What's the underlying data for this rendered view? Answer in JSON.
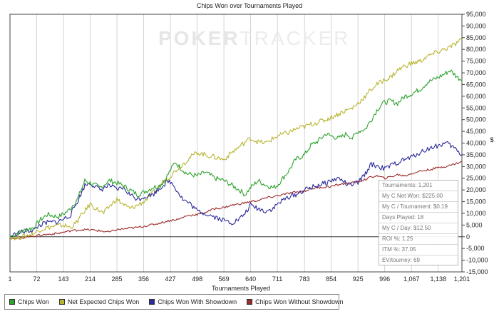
{
  "chart_data": {
    "type": "line",
    "title": "Chips Won over Tournaments Played",
    "xlabel": "Tournaments Played",
    "ylabel": "$",
    "xlim": [
      1,
      1201
    ],
    "ylim": [
      -15000,
      95000
    ],
    "x_ticks": [
      "1",
      "72",
      "143",
      "214",
      "285",
      "356",
      "427",
      "498",
      "569",
      "640",
      "711",
      "783",
      "854",
      "925",
      "996",
      "1,067",
      "1,138",
      "1,201"
    ],
    "y_ticks": [
      {
        "value": 95000,
        "label": "95,000"
      },
      {
        "value": 90000,
        "label": "90,000"
      },
      {
        "value": 85000,
        "label": "85,000"
      },
      {
        "value": 80000,
        "label": "80,000"
      },
      {
        "value": 75000,
        "label": "75,000"
      },
      {
        "value": 70000,
        "label": "70,000"
      },
      {
        "value": 65000,
        "label": "65,000"
      },
      {
        "value": 60000,
        "label": "60,000"
      },
      {
        "value": 55000,
        "label": "55,000"
      },
      {
        "value": 50000,
        "label": "50,000"
      },
      {
        "value": 45000,
        "label": "45,000"
      },
      {
        "value": 40000,
        "label": "40,000"
      },
      {
        "value": 35000,
        "label": "35,000"
      },
      {
        "value": 30000,
        "label": "30,000"
      },
      {
        "value": 25000,
        "label": "25,000"
      },
      {
        "value": 20000,
        "label": "20,000"
      },
      {
        "value": 15000,
        "label": "15,000"
      },
      {
        "value": 10000,
        "label": "10,000"
      },
      {
        "value": 5000,
        "label": "5,000"
      },
      {
        "value": 0,
        "label": "0"
      },
      {
        "value": -5000,
        "label": "-5,000"
      },
      {
        "value": -10000,
        "label": "-10,000"
      },
      {
        "value": -15000,
        "label": "-15,000"
      }
    ],
    "grid": "vertical",
    "legend_position": "bottom-left",
    "series": [
      {
        "name": "Chips Won",
        "color": "#2ea32e",
        "points": [
          [
            1,
            0
          ],
          [
            20,
            1500
          ],
          [
            45,
            3000
          ],
          [
            65,
            4000
          ],
          [
            80,
            7000
          ],
          [
            100,
            9500
          ],
          [
            130,
            8500
          ],
          [
            155,
            11000
          ],
          [
            180,
            16000
          ],
          [
            200,
            24000
          ],
          [
            214,
            23000
          ],
          [
            240,
            21000
          ],
          [
            265,
            24000
          ],
          [
            285,
            23000
          ],
          [
            300,
            22000
          ],
          [
            320,
            20000
          ],
          [
            340,
            18000
          ],
          [
            356,
            19000
          ],
          [
            380,
            21000
          ],
          [
            400,
            22000
          ],
          [
            415,
            25000
          ],
          [
            440,
            32000
          ],
          [
            450,
            30000
          ],
          [
            470,
            27000
          ],
          [
            498,
            26000
          ],
          [
            520,
            27500
          ],
          [
            545,
            25000
          ],
          [
            569,
            24000
          ],
          [
            590,
            22000
          ],
          [
            610,
            20000
          ],
          [
            625,
            18000
          ],
          [
            640,
            21000
          ],
          [
            660,
            24000
          ],
          [
            680,
            22000
          ],
          [
            700,
            21000
          ],
          [
            711,
            22000
          ],
          [
            740,
            28000
          ],
          [
            760,
            33000
          ],
          [
            783,
            35000
          ],
          [
            800,
            39000
          ],
          [
            820,
            41000
          ],
          [
            840,
            44000
          ],
          [
            854,
            43000
          ],
          [
            875,
            42000
          ],
          [
            895,
            44000
          ],
          [
            910,
            42000
          ],
          [
            925,
            45000
          ],
          [
            945,
            46000
          ],
          [
            960,
            50000
          ],
          [
            975,
            54000
          ],
          [
            990,
            57000
          ],
          [
            1010,
            58000
          ],
          [
            1030,
            57000
          ],
          [
            1050,
            60000
          ],
          [
            1067,
            61000
          ],
          [
            1090,
            63000
          ],
          [
            1110,
            66000
          ],
          [
            1138,
            68000
          ],
          [
            1170,
            71000
          ],
          [
            1190,
            68000
          ],
          [
            1201,
            67000
          ]
        ]
      },
      {
        "name": "Net Expected Chips Won",
        "color": "#b8b530",
        "points": [
          [
            1,
            0
          ],
          [
            20,
            -500
          ],
          [
            45,
            500
          ],
          [
            65,
            1500
          ],
          [
            80,
            3000
          ],
          [
            100,
            4000
          ],
          [
            120,
            4500
          ],
          [
            143,
            5000
          ],
          [
            160,
            4000
          ],
          [
            175,
            5500
          ],
          [
            190,
            9000
          ],
          [
            214,
            14000
          ],
          [
            230,
            12000
          ],
          [
            250,
            10000
          ],
          [
            265,
            13000
          ],
          [
            285,
            16000
          ],
          [
            300,
            14000
          ],
          [
            320,
            12000
          ],
          [
            340,
            13500
          ],
          [
            356,
            15000
          ],
          [
            370,
            17000
          ],
          [
            390,
            20000
          ],
          [
            410,
            24000
          ],
          [
            427,
            26000
          ],
          [
            445,
            29000
          ],
          [
            460,
            31000
          ],
          [
            480,
            34000
          ],
          [
            498,
            36000
          ],
          [
            520,
            35000
          ],
          [
            545,
            34000
          ],
          [
            569,
            33000
          ],
          [
            590,
            36000
          ],
          [
            610,
            38500
          ],
          [
            630,
            41000
          ],
          [
            640,
            42000
          ],
          [
            660,
            40500
          ],
          [
            680,
            40000
          ],
          [
            700,
            42000
          ],
          [
            711,
            43000
          ],
          [
            740,
            44500
          ],
          [
            760,
            46000
          ],
          [
            783,
            47000
          ],
          [
            800,
            48000
          ],
          [
            820,
            49000
          ],
          [
            840,
            50000
          ],
          [
            854,
            51000
          ],
          [
            880,
            53000
          ],
          [
            910,
            55000
          ],
          [
            925,
            57000
          ],
          [
            945,
            60000
          ],
          [
            960,
            63000
          ],
          [
            975,
            65000
          ],
          [
            996,
            67000
          ],
          [
            1010,
            68000
          ],
          [
            1030,
            71000
          ],
          [
            1050,
            73000
          ],
          [
            1067,
            74000
          ],
          [
            1090,
            75000
          ],
          [
            1110,
            77000
          ],
          [
            1138,
            79000
          ],
          [
            1170,
            81000
          ],
          [
            1190,
            83000
          ],
          [
            1201,
            84000
          ]
        ]
      },
      {
        "name": "Chips Won With Showdown",
        "color": "#2b2b9c",
        "points": [
          [
            1,
            0
          ],
          [
            20,
            1500
          ],
          [
            45,
            2500
          ],
          [
            65,
            3000
          ],
          [
            80,
            5000
          ],
          [
            100,
            6000
          ],
          [
            130,
            6500
          ],
          [
            160,
            9000
          ],
          [
            180,
            15000
          ],
          [
            200,
            22000
          ],
          [
            214,
            23000
          ],
          [
            240,
            20000
          ],
          [
            265,
            22000
          ],
          [
            285,
            20000
          ],
          [
            300,
            21000
          ],
          [
            320,
            18000
          ],
          [
            340,
            16000
          ],
          [
            356,
            17000
          ],
          [
            380,
            18000
          ],
          [
            400,
            21000
          ],
          [
            415,
            23000
          ],
          [
            427,
            23500
          ],
          [
            440,
            21000
          ],
          [
            460,
            16000
          ],
          [
            480,
            14000
          ],
          [
            498,
            11000
          ],
          [
            520,
            10000
          ],
          [
            545,
            8500
          ],
          [
            569,
            7000
          ],
          [
            590,
            6000
          ],
          [
            610,
            7500
          ],
          [
            625,
            10000
          ],
          [
            640,
            13500
          ],
          [
            660,
            12000
          ],
          [
            680,
            11000
          ],
          [
            700,
            12000
          ],
          [
            711,
            14000
          ],
          [
            740,
            17000
          ],
          [
            760,
            18000
          ],
          [
            783,
            20000
          ],
          [
            800,
            21000
          ],
          [
            820,
            22000
          ],
          [
            840,
            23000
          ],
          [
            854,
            24000
          ],
          [
            875,
            25000
          ],
          [
            900,
            22000
          ],
          [
            925,
            23000
          ],
          [
            945,
            27000
          ],
          [
            960,
            31000
          ],
          [
            980,
            30000
          ],
          [
            996,
            29000
          ],
          [
            1020,
            31000
          ],
          [
            1050,
            33000
          ],
          [
            1067,
            34000
          ],
          [
            1090,
            36000
          ],
          [
            1110,
            37500
          ],
          [
            1138,
            39000
          ],
          [
            1160,
            40000
          ],
          [
            1180,
            38000
          ],
          [
            1201,
            35000
          ]
        ]
      },
      {
        "name": "Chips Won Without Showdown",
        "color": "#9c2b2b",
        "points": [
          [
            1,
            0
          ],
          [
            20,
            -1000
          ],
          [
            45,
            0
          ],
          [
            72,
            500
          ],
          [
            100,
            1000
          ],
          [
            130,
            1500
          ],
          [
            160,
            2500
          ],
          [
            190,
            3000
          ],
          [
            214,
            3000
          ],
          [
            240,
            2500
          ],
          [
            265,
            2000
          ],
          [
            285,
            3000
          ],
          [
            310,
            3500
          ],
          [
            340,
            4000
          ],
          [
            356,
            4500
          ],
          [
            390,
            5500
          ],
          [
            427,
            7000
          ],
          [
            450,
            7500
          ],
          [
            470,
            9000
          ],
          [
            498,
            9500
          ],
          [
            520,
            10500
          ],
          [
            545,
            12000
          ],
          [
            569,
            12500
          ],
          [
            590,
            13500
          ],
          [
            610,
            14000
          ],
          [
            640,
            15000
          ],
          [
            660,
            15500
          ],
          [
            680,
            16500
          ],
          [
            711,
            17500
          ],
          [
            740,
            18500
          ],
          [
            760,
            19000
          ],
          [
            783,
            19500
          ],
          [
            800,
            20500
          ],
          [
            820,
            21000
          ],
          [
            854,
            21500
          ],
          [
            880,
            22500
          ],
          [
            910,
            23000
          ],
          [
            925,
            23500
          ],
          [
            945,
            24500
          ],
          [
            960,
            25500
          ],
          [
            975,
            26000
          ],
          [
            996,
            25000
          ],
          [
            1010,
            25500
          ],
          [
            1030,
            26500
          ],
          [
            1050,
            26000
          ],
          [
            1067,
            27000
          ],
          [
            1090,
            28000
          ],
          [
            1110,
            28500
          ],
          [
            1138,
            29500
          ],
          [
            1170,
            30500
          ],
          [
            1190,
            31500
          ],
          [
            1201,
            32000
          ]
        ]
      }
    ]
  },
  "stats_panel": [
    "Tournaments: 1,201",
    "My C Net Won: $225.00",
    "My C / Tournament: $0.19",
    "Days Played: 18",
    "My C / Day: $12.50",
    "ROI %: 1.25",
    "ITM %: 37.05",
    "EV/tourney: 69"
  ],
  "watermark": {
    "part1": "POKER",
    "part2": "TRACKER"
  }
}
